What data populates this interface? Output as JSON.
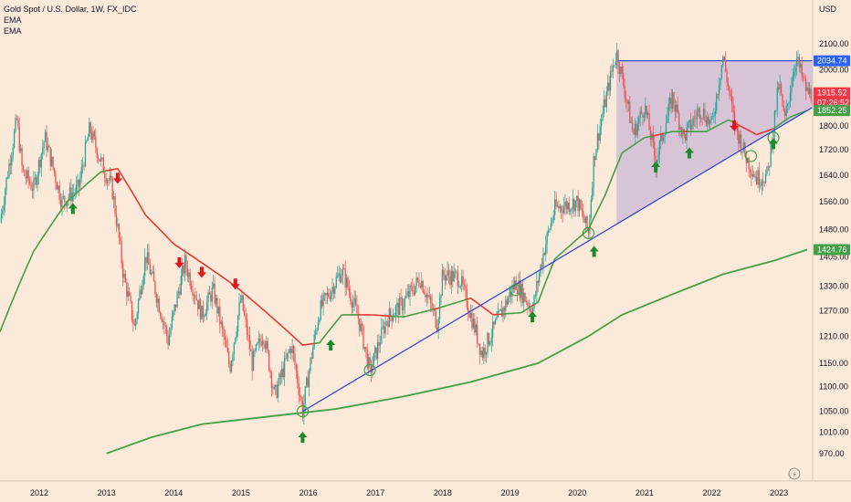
{
  "legend": {
    "title": "Gold Spot / U.S. Dollar, 1W, FX_IDC",
    "ema1": "EMA",
    "ema2": "EMA"
  },
  "axis": {
    "currency": "USD",
    "y_ticks": [
      "2100.00",
      "2000.00",
      "1800.00",
      "1720.00",
      "1640.00",
      "1560.00",
      "1480.00",
      "1405.00",
      "1330.00",
      "1270.00",
      "1210.00",
      "1150.00",
      "1100.00",
      "1050.00",
      "1010.00",
      "970.00"
    ],
    "x_ticks": [
      "2012",
      "2013",
      "2014",
      "2015",
      "2016",
      "2017",
      "2018",
      "2019",
      "2020",
      "2021",
      "2022",
      "2023"
    ]
  },
  "price_tags": {
    "resistance": "2034.74",
    "last": "1915.52",
    "countdown": "07:26:52",
    "ema_fast": "1852.25",
    "ema_slow": "1424.76"
  },
  "colors": {
    "background": "#fbe9d9",
    "candle_up": "#26a69a",
    "candle_down": "#ef5350",
    "ema_green": "#43a047",
    "ema_red": "#e53935",
    "trendline": "#2440d8",
    "triangle_fill": "#c9b3d6",
    "arrow_up": "#1b8a2a",
    "arrow_down": "#e0161b",
    "tag_blue": "#2962ff",
    "tag_red": "#f23645",
    "tag_green": "#43a047"
  },
  "chart_data": {
    "type": "line",
    "y_scale": "log",
    "ylim": [
      940,
      2130
    ],
    "x_range": [
      "2011-06",
      "2023-07"
    ],
    "price_path": [
      [
        "2011-06",
        1500
      ],
      [
        "2011-09",
        1820
      ],
      [
        "2011-10",
        1650
      ],
      [
        "2011-12",
        1600
      ],
      [
        "2012-02",
        1760
      ],
      [
        "2012-05",
        1560
      ],
      [
        "2012-08",
        1600
      ],
      [
        "2012-10",
        1790
      ],
      [
        "2012-12",
        1680
      ],
      [
        "2013-02",
        1600
      ],
      [
        "2013-04",
        1360
      ],
      [
        "2013-06",
        1230
      ],
      [
        "2013-08",
        1410
      ],
      [
        "2013-12",
        1200
      ],
      [
        "2014-03",
        1390
      ],
      [
        "2014-06",
        1260
      ],
      [
        "2014-08",
        1320
      ],
      [
        "2014-11",
        1140
      ],
      [
        "2015-01",
        1300
      ],
      [
        "2015-03",
        1150
      ],
      [
        "2015-05",
        1220
      ],
      [
        "2015-07",
        1080
      ],
      [
        "2015-10",
        1190
      ],
      [
        "2015-12",
        1050
      ],
      [
        "2016-03",
        1270
      ],
      [
        "2016-07",
        1370
      ],
      [
        "2016-10",
        1250
      ],
      [
        "2016-12",
        1130
      ],
      [
        "2017-03",
        1250
      ],
      [
        "2017-06",
        1290
      ],
      [
        "2017-09",
        1350
      ],
      [
        "2017-12",
        1240
      ],
      [
        "2018-01",
        1360
      ],
      [
        "2018-04",
        1350
      ],
      [
        "2018-08",
        1170
      ],
      [
        "2018-12",
        1280
      ],
      [
        "2019-02",
        1340
      ],
      [
        "2019-05",
        1270
      ],
      [
        "2019-07",
        1420
      ],
      [
        "2019-09",
        1540
      ],
      [
        "2020-01",
        1560
      ],
      [
        "2020-03",
        1470
      ],
      [
        "2020-04",
        1700
      ],
      [
        "2020-08",
        2070
      ],
      [
        "2020-11",
        1770
      ],
      [
        "2021-01",
        1870
      ],
      [
        "2021-03",
        1680
      ],
      [
        "2021-06",
        1900
      ],
      [
        "2021-08",
        1760
      ],
      [
        "2021-11",
        1860
      ],
      [
        "2022-01",
        1800
      ],
      [
        "2022-03",
        2050
      ],
      [
        "2022-05",
        1810
      ],
      [
        "2022-07",
        1700
      ],
      [
        "2022-09",
        1630
      ],
      [
        "2022-11",
        1640
      ],
      [
        "2023-01",
        1950
      ],
      [
        "2023-02",
        1810
      ],
      [
        "2023-04",
        2050
      ],
      [
        "2023-05",
        1980
      ],
      [
        "2023-06",
        1915
      ]
    ],
    "series": [
      {
        "values": [
          [
            "2011-06",
            1220
          ],
          [
            "2011-12",
            1420
          ],
          [
            "2012-06",
            1560
          ],
          [
            "2012-12",
            1650
          ],
          [
            "2013-03",
            1660
          ],
          [
            "2013-08",
            1520
          ],
          [
            "2014-01",
            1440
          ],
          [
            "2014-06",
            1390
          ],
          [
            "2014-12",
            1330
          ],
          [
            "2015-06",
            1260
          ],
          [
            "2015-12",
            1190
          ],
          [
            "2016-03",
            1195
          ],
          [
            "2016-07",
            1260
          ],
          [
            "2016-12",
            1260
          ],
          [
            "2017-06",
            1255
          ],
          [
            "2017-12",
            1275
          ],
          [
            "2018-06",
            1300
          ],
          [
            "2018-10",
            1260
          ],
          [
            "2019-03",
            1265
          ],
          [
            "2019-06",
            1290
          ],
          [
            "2019-09",
            1400
          ],
          [
            "2020-03",
            1480
          ],
          [
            "2020-06",
            1580
          ],
          [
            "2020-09",
            1710
          ],
          [
            "2021-01",
            1760
          ],
          [
            "2021-06",
            1780
          ],
          [
            "2021-12",
            1780
          ],
          [
            "2022-04",
            1820
          ],
          [
            "2022-09",
            1770
          ],
          [
            "2022-12",
            1790
          ],
          [
            "2023-03",
            1830
          ],
          [
            "2023-06",
            1852.25
          ]
        ]
      },
      {
        "values": [
          [
            "2013-01",
            970
          ],
          [
            "2013-09",
            1000
          ],
          [
            "2014-06",
            1025
          ],
          [
            "2015-06",
            1040
          ],
          [
            "2016-06",
            1055
          ],
          [
            "2017-06",
            1080
          ],
          [
            "2018-06",
            1110
          ],
          [
            "2019-06",
            1150
          ],
          [
            "2020-03",
            1210
          ],
          [
            "2020-09",
            1260
          ],
          [
            "2021-06",
            1310
          ],
          [
            "2022-03",
            1360
          ],
          [
            "2022-12",
            1395
          ],
          [
            "2023-06",
            1424.76
          ]
        ]
      }
    ],
    "resistance_level": 2034.74,
    "trendline": [
      [
        "2015-12",
        1050
      ],
      [
        "2023-06",
        1852
      ]
    ],
    "arrows_up": [
      [
        "2012-07",
        1540
      ],
      [
        "2016-05",
        1190
      ],
      [
        "2019-05",
        1255
      ],
      [
        "2020-04",
        1420
      ],
      [
        "2021-03",
        1665
      ],
      [
        "2021-09",
        1710
      ],
      [
        "2022-12",
        1740
      ],
      [
        "2015-12",
        1000
      ]
    ],
    "arrows_down": [
      [
        "2013-03",
        1630
      ],
      [
        "2014-02",
        1390
      ],
      [
        "2014-06",
        1365
      ],
      [
        "2014-12",
        1335
      ],
      [
        "2022-05",
        1800
      ]
    ],
    "circles": [
      [
        "2015-12",
        1050
      ],
      [
        "2016-12",
        1135
      ],
      [
        "2019-02",
        1320
      ],
      [
        "2020-03",
        1470
      ],
      [
        "2022-08",
        1700
      ],
      [
        "2022-12",
        1760
      ]
    ]
  }
}
